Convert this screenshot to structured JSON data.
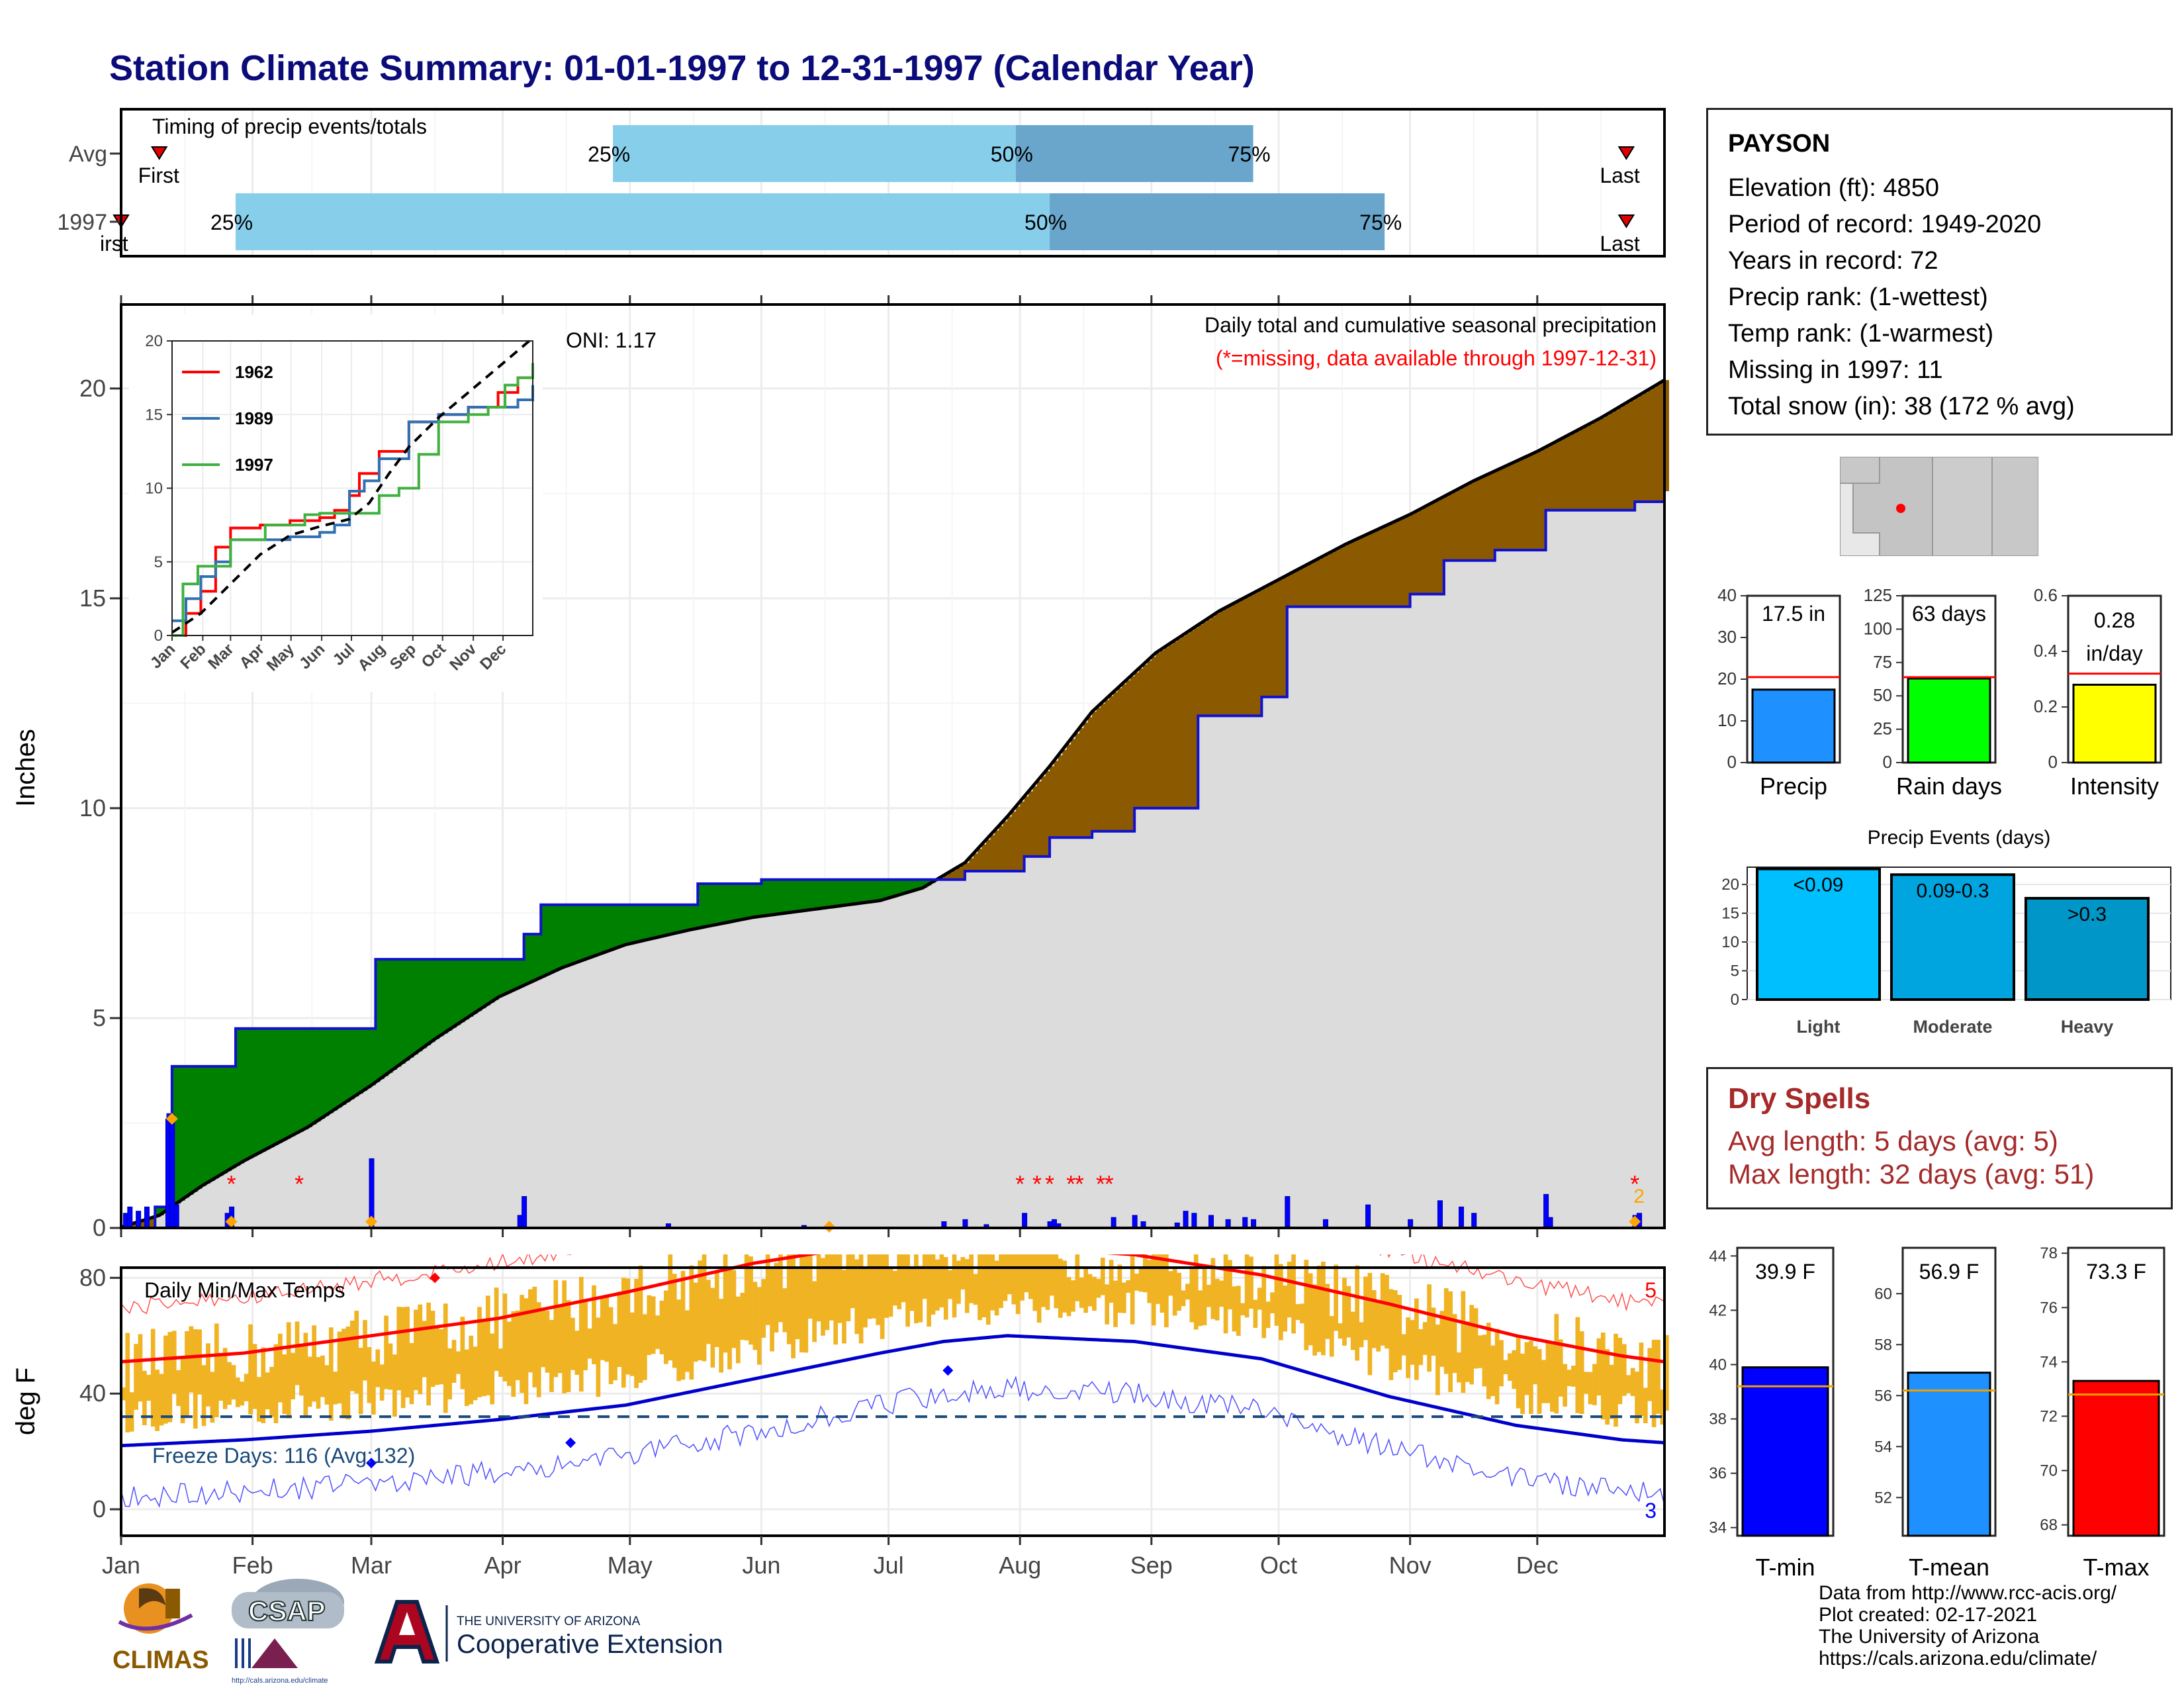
{
  "title": "Station Climate Summary: 01-01-1997 to 12-31-1997 (Calendar Year)",
  "colors": {
    "title": "#0b0b7a",
    "precip_lightblue": "#87ceeb",
    "precip_steelblue": "#6aa6cc",
    "accum_line": "#1010d0",
    "deficit_green": "#008000",
    "surplus_brown": "#8b5a00",
    "tmax_bar": "#f0b323",
    "tmax_line": "#ff0000",
    "tmin_line": "#0000cc",
    "dry_text": "#a52a2a"
  },
  "timing_panel": {
    "title": "Timing of precip events/totals",
    "rows": [
      {
        "label": "Avg",
        "first_label": "First",
        "first_day": 10,
        "p25_label": "25%",
        "p25_day": 117,
        "p50_label": "50%",
        "p50_day": 212,
        "p75_label": "75%",
        "p75_day": 268,
        "last_label": "Last",
        "last_day": 356
      },
      {
        "label": "1997",
        "first_label": "irst",
        "first_day": 1,
        "p25_label": "25%",
        "p25_day": 28,
        "p50_label": "50%",
        "p50_day": 220,
        "p75_label": "75%",
        "p75_day": 299,
        "last_label": "Last",
        "last_day": 356
      }
    ]
  },
  "months": [
    "Jan",
    "Feb",
    "Mar",
    "Apr",
    "May",
    "Jun",
    "Jul",
    "Aug",
    "Sep",
    "Oct",
    "Nov",
    "Dec"
  ],
  "main_panel": {
    "ylabel": "Inches",
    "yticks": [
      0,
      5,
      10,
      15,
      20
    ],
    "ylim": [
      0,
      22
    ],
    "header1": "Daily total and cumulative seasonal precipitation",
    "header2": "(*=missing, data available through 1997-12-31)",
    "oni": "ONI: 1.17",
    "right_marker": "2",
    "cumulative_1997": [
      [
        1,
        0
      ],
      [
        9,
        0.5
      ],
      [
        12,
        2.7
      ],
      [
        13,
        3.85
      ],
      [
        27,
        3.85
      ],
      [
        28,
        4.75
      ],
      [
        60,
        4.75
      ],
      [
        61,
        6.4
      ],
      [
        95,
        6.4
      ],
      [
        96,
        7.0
      ],
      [
        100,
        7.7
      ],
      [
        136,
        7.7
      ],
      [
        137,
        8.2
      ],
      [
        152,
        8.3
      ],
      [
        195,
        8.3
      ],
      [
        200,
        8.5
      ],
      [
        214,
        8.85
      ],
      [
        220,
        9.3
      ],
      [
        230,
        9.45
      ],
      [
        240,
        10.0
      ],
      [
        255,
        12.2
      ],
      [
        270,
        12.65
      ],
      [
        276,
        14.8
      ],
      [
        302,
        14.8
      ],
      [
        305,
        15.1
      ],
      [
        313,
        15.9
      ],
      [
        320,
        15.9
      ],
      [
        325,
        16.15
      ],
      [
        335,
        16.15
      ],
      [
        337,
        17.1
      ],
      [
        358,
        17.3
      ],
      [
        365,
        17.55
      ]
    ],
    "cumulative_avg": [
      [
        1,
        0.02
      ],
      [
        10,
        0.3
      ],
      [
        20,
        1.0
      ],
      [
        30,
        1.6
      ],
      [
        45,
        2.4
      ],
      [
        60,
        3.4
      ],
      [
        75,
        4.5
      ],
      [
        90,
        5.5
      ],
      [
        105,
        6.2
      ],
      [
        120,
        6.75
      ],
      [
        135,
        7.1
      ],
      [
        150,
        7.4
      ],
      [
        165,
        7.6
      ],
      [
        180,
        7.8
      ],
      [
        190,
        8.1
      ],
      [
        200,
        8.7
      ],
      [
        210,
        9.8
      ],
      [
        220,
        11.0
      ],
      [
        230,
        12.3
      ],
      [
        245,
        13.7
      ],
      [
        260,
        14.7
      ],
      [
        275,
        15.5
      ],
      [
        290,
        16.3
      ],
      [
        305,
        17.0
      ],
      [
        320,
        17.8
      ],
      [
        335,
        18.5
      ],
      [
        350,
        19.3
      ],
      [
        365,
        20.2
      ]
    ],
    "daily_precip": [
      [
        2,
        0.35
      ],
      [
        3,
        0.5
      ],
      [
        5,
        0.4
      ],
      [
        7,
        0.5
      ],
      [
        12,
        2.6
      ],
      [
        13,
        2.7
      ],
      [
        14,
        0.55
      ],
      [
        26,
        0.35
      ],
      [
        27,
        0.5
      ],
      [
        60,
        1.65
      ],
      [
        95,
        0.3
      ],
      [
        96,
        0.75
      ],
      [
        130,
        0.1
      ],
      [
        162,
        0.06
      ],
      [
        195,
        0.15
      ],
      [
        200,
        0.2
      ],
      [
        205,
        0.08
      ],
      [
        214,
        0.35
      ],
      [
        220,
        0.15
      ],
      [
        221,
        0.2
      ],
      [
        222,
        0.1
      ],
      [
        235,
        0.25
      ],
      [
        240,
        0.3
      ],
      [
        242,
        0.15
      ],
      [
        250,
        0.12
      ],
      [
        252,
        0.4
      ],
      [
        254,
        0.35
      ],
      [
        258,
        0.3
      ],
      [
        262,
        0.2
      ],
      [
        266,
        0.25
      ],
      [
        268,
        0.2
      ],
      [
        276,
        0.75
      ],
      [
        285,
        0.2
      ],
      [
        295,
        0.55
      ],
      [
        305,
        0.2
      ],
      [
        312,
        0.65
      ],
      [
        317,
        0.5
      ],
      [
        320,
        0.35
      ],
      [
        337,
        0.8
      ],
      [
        338,
        0.25
      ],
      [
        358,
        0.3
      ],
      [
        359,
        0.35
      ]
    ],
    "missing_days": [
      27,
      43,
      213,
      217,
      220,
      225,
      227,
      232,
      234,
      358
    ],
    "inset": {
      "series": [
        {
          "name": "1962",
          "color": "#ff0000",
          "points": [
            [
              1,
              0
            ],
            [
              15,
              1.5
            ],
            [
              30,
              3
            ],
            [
              45,
              6
            ],
            [
              60,
              7.3
            ],
            [
              90,
              7.5
            ],
            [
              120,
              7.8
            ],
            [
              150,
              8
            ],
            [
              165,
              8.5
            ],
            [
              180,
              9.5
            ],
            [
              190,
              11
            ],
            [
              210,
              12.5
            ],
            [
              240,
              14.5
            ],
            [
              270,
              15
            ],
            [
              300,
              15.5
            ],
            [
              330,
              16.5
            ],
            [
              350,
              17.5
            ],
            [
              365,
              18
            ]
          ]
        },
        {
          "name": "1989",
          "color": "#3070b0",
          "points": [
            [
              1,
              1
            ],
            [
              15,
              2.5
            ],
            [
              30,
              4
            ],
            [
              45,
              5
            ],
            [
              60,
              6.5
            ],
            [
              90,
              6.5
            ],
            [
              120,
              6.7
            ],
            [
              150,
              7
            ],
            [
              165,
              7.5
            ],
            [
              180,
              9.8
            ],
            [
              195,
              10.5
            ],
            [
              210,
              12
            ],
            [
              240,
              14.5
            ],
            [
              270,
              15
            ],
            [
              300,
              15.5
            ],
            [
              330,
              15.5
            ],
            [
              350,
              16
            ],
            [
              365,
              17
            ]
          ]
        },
        {
          "name": "1997",
          "color": "#40b040",
          "points": [
            [
              1,
              0
            ],
            [
              12,
              3.5
            ],
            [
              27,
              4.7
            ],
            [
              60,
              6.5
            ],
            [
              95,
              7.5
            ],
            [
              135,
              8.2
            ],
            [
              150,
              8.3
            ],
            [
              195,
              8.3
            ],
            [
              210,
              9.5
            ],
            [
              230,
              10
            ],
            [
              250,
              12.3
            ],
            [
              270,
              14.5
            ],
            [
              300,
              15
            ],
            [
              320,
              15.5
            ],
            [
              337,
              17
            ],
            [
              350,
              17.5
            ],
            [
              365,
              18.5
            ]
          ]
        }
      ],
      "avg_line": [
        [
          1,
          0.2
        ],
        [
          30,
          1.5
        ],
        [
          60,
          3.5
        ],
        [
          90,
          5.5
        ],
        [
          120,
          6.8
        ],
        [
          150,
          7.4
        ],
        [
          180,
          7.9
        ],
        [
          200,
          9
        ],
        [
          220,
          11
        ],
        [
          240,
          12.8
        ],
        [
          270,
          14.8
        ],
        [
          300,
          16.5
        ],
        [
          330,
          18.2
        ],
        [
          365,
          20.2
        ]
      ],
      "ylim": [
        0,
        20
      ],
      "yticks": [
        0,
        5,
        10,
        15,
        20
      ]
    }
  },
  "temp_panel": {
    "title": "Daily Min/Max Temps",
    "ylabel": "deg F",
    "yticks": [
      0,
      40,
      80
    ],
    "freeze_label": "Freeze Days: 116 (Avg:132)",
    "freeze_temp": 32,
    "count_top": "5",
    "count_bottom": "3",
    "max_norm": [
      [
        1,
        51
      ],
      [
        30,
        54
      ],
      [
        60,
        60
      ],
      [
        90,
        66
      ],
      [
        120,
        75
      ],
      [
        150,
        85
      ],
      [
        180,
        92
      ],
      [
        195,
        93
      ],
      [
        210,
        91
      ],
      [
        240,
        88
      ],
      [
        270,
        81
      ],
      [
        300,
        71
      ],
      [
        330,
        60
      ],
      [
        355,
        53
      ],
      [
        365,
        51
      ]
    ],
    "min_norm": [
      [
        1,
        22
      ],
      [
        30,
        24
      ],
      [
        60,
        27
      ],
      [
        90,
        31
      ],
      [
        120,
        36
      ],
      [
        150,
        45
      ],
      [
        180,
        54
      ],
      [
        195,
        58
      ],
      [
        210,
        60
      ],
      [
        240,
        58
      ],
      [
        270,
        52
      ],
      [
        300,
        39
      ],
      [
        330,
        29
      ],
      [
        355,
        24
      ],
      [
        365,
        23
      ]
    ]
  },
  "station": {
    "name": "PAYSON",
    "lines": [
      "Elevation (ft): 4850",
      "Period of record: 1949-2020",
      "Years in record: 72",
      "Precip rank:  (1-wettest)",
      "Temp rank:  (1-warmest)",
      "Missing in 1997: 11",
      "Total snow (in): 38 (172 % avg)"
    ]
  },
  "summary_bars": [
    {
      "label": "Precip",
      "value_label": "17.5 in",
      "value": 17.5,
      "avg": 20.5,
      "ylim": [
        0,
        40
      ],
      "yticks": [
        0,
        10,
        20,
        30,
        40
      ],
      "color": "#1e90ff"
    },
    {
      "label": "Rain days",
      "value_label": "63 days",
      "value": 63,
      "avg": 64,
      "ylim": [
        0,
        125
      ],
      "yticks": [
        0,
        25,
        50,
        75,
        100,
        125
      ],
      "color": "#00ff00"
    },
    {
      "label": "Intensity",
      "value_label": "0.28",
      "value_label2": "in/day",
      "value": 0.28,
      "avg": 0.32,
      "ylim": [
        0,
        0.6
      ],
      "yticks": [
        0.0,
        0.2,
        0.4,
        0.6
      ],
      "color": "#ffff00"
    }
  ],
  "precip_events": {
    "title": "Precip Events (days)",
    "ylim": [
      0,
      23
    ],
    "yticks": [
      0,
      5,
      10,
      15,
      20
    ],
    "bars": [
      {
        "label": "Light",
        "inner": "<0.09",
        "value": 22.7,
        "color": "#00bfff"
      },
      {
        "label": "Moderate",
        "inner": "0.09-0.3",
        "value": 21.7,
        "color": "#00a5e0"
      },
      {
        "label": "Heavy",
        "inner": ">0.3",
        "value": 17.6,
        "color": "#0096c8"
      }
    ]
  },
  "dry_spells": {
    "title": "Dry Spells",
    "avg_line": "Avg length: 5 days (avg: 5)",
    "max_line": "Max length: 32 days (avg: 51)"
  },
  "temp_bars": [
    {
      "label": "T-min",
      "value_label": "39.9 F",
      "value": 39.9,
      "avg": 39.2,
      "ylim": [
        33.7,
        44.3
      ],
      "yticks": [
        34,
        36,
        38,
        40,
        42,
        44
      ],
      "color": "#0000ff"
    },
    {
      "label": "T-mean",
      "value_label": "56.9 F",
      "value": 56.9,
      "avg": 56.2,
      "ylim": [
        50.5,
        61.8
      ],
      "yticks": [
        52,
        54,
        56,
        58,
        60
      ],
      "color": "#1e90ff"
    },
    {
      "label": "T-max",
      "value_label": "73.3 F",
      "value": 73.3,
      "avg": 72.8,
      "ylim": [
        67.6,
        78.2
      ],
      "yticks": [
        68,
        70,
        72,
        74,
        76,
        78
      ],
      "color": "#ff0000"
    }
  ],
  "footer": {
    "lines": [
      "Data from http://www.rcc-acis.org/",
      "Plot created: 02-17-2021",
      "The University of Arizona",
      "https://cals.arizona.edu/climate/"
    ]
  },
  "logos": {
    "climas": "CLIMAS",
    "csap": "CSAP",
    "csap_url": "http://cals.arizona.edu/climate",
    "ua_small": "THE UNIVERSITY OF ARIZONA",
    "ua_big": "Cooperative Extension"
  }
}
